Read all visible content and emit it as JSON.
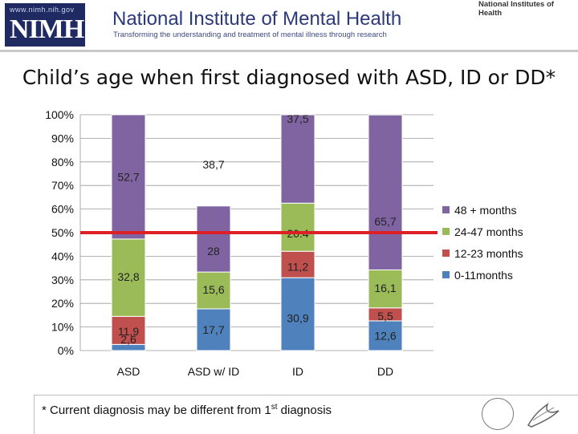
{
  "header": {
    "url": "www.nimh.nih.gov",
    "logo": "NIMH",
    "institute_name": "National Institute of Mental Health",
    "tagline": "Transforming the understanding and treatment of mental illness through research",
    "nih_badge": "National Institutes of Health"
  },
  "footnote": {
    "main": "* Current diagnosis may be different from 1",
    "superscript": "st",
    "tail": " diagnosis"
  },
  "colors": {
    "purple": "#8064a2",
    "green": "#9bbb59",
    "red": "#c0504d",
    "blue": "#4f81bd",
    "threshold": "#dd1f26",
    "grid": "#999999"
  },
  "chart_data": {
    "type": "bar",
    "stacked": true,
    "title": "Child’s age when first diagnosed with ASD, ID or DD*",
    "categories": [
      "ASD",
      "ASD w/ ID",
      "ID",
      "DD"
    ],
    "ylim": [
      0,
      100
    ],
    "yticks": [
      "0%",
      "10%",
      "20%",
      "30%",
      "40%",
      "50%",
      "60%",
      "70%",
      "80%",
      "90%",
      "100%"
    ],
    "grid": true,
    "legend_position": "right",
    "reference_line": 50,
    "series": [
      {
        "name": "0-11months",
        "color": "#4f81bd",
        "values": [
          2.6,
          17.7,
          30.9,
          12.6
        ],
        "labels": [
          "2,6",
          "17,7",
          "30,9",
          "12,6"
        ]
      },
      {
        "name": "12-23 months",
        "color": "#c0504d",
        "values": [
          11.9,
          0,
          11.2,
          5.5
        ],
        "labels": [
          "11,9",
          "",
          "11,2",
          "5,5"
        ]
      },
      {
        "name": "24-47 months",
        "color": "#9bbb59",
        "values": [
          32.8,
          15.6,
          20.4,
          16.1
        ],
        "labels": [
          "32,8",
          "15,6",
          "20.4",
          "16,1"
        ]
      },
      {
        "name": "48 + months",
        "color": "#8064a2",
        "values": [
          52.7,
          28,
          37.5,
          65.7
        ],
        "labels": [
          "52,7",
          "28",
          "37,5",
          "65,7"
        ]
      }
    ],
    "extra_labels": [
      {
        "category_index": 1,
        "text": "38,7"
      }
    ]
  }
}
